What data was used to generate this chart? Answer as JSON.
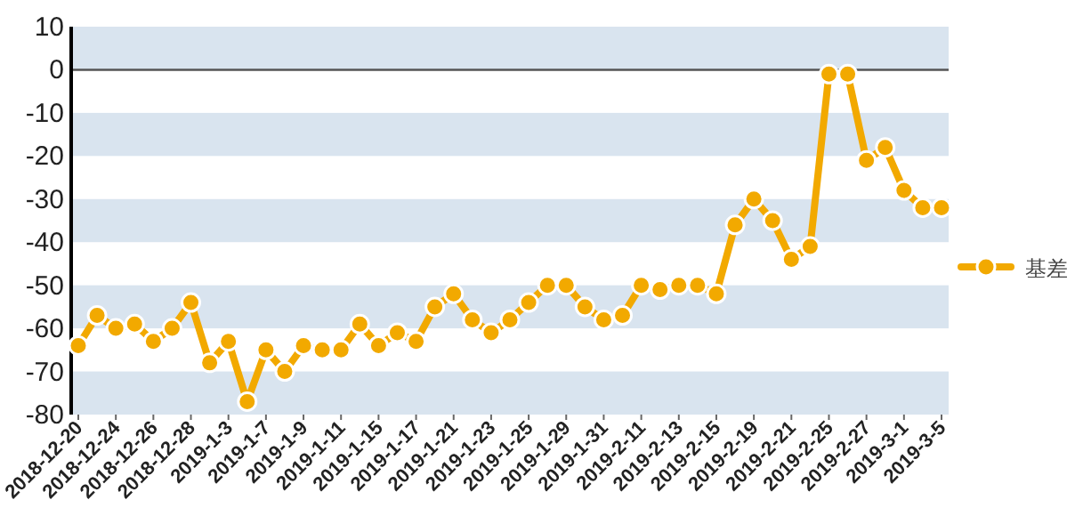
{
  "chart_data": {
    "type": "line",
    "categories": [
      "2018-12-20",
      null,
      "2018-12-24",
      null,
      "2018-12-26",
      null,
      "2018-12-28",
      null,
      "2019-1-3",
      null,
      "2019-1-7",
      null,
      "2019-1-9",
      null,
      "2019-1-11",
      null,
      "2019-1-15",
      null,
      "2019-1-17",
      null,
      "2019-1-21",
      null,
      "2019-1-23",
      null,
      "2019-1-25",
      null,
      "2019-1-29",
      null,
      "2019-1-31",
      null,
      "2019-2-11",
      null,
      "2019-2-13",
      null,
      "2019-2-15",
      null,
      "2019-2-19",
      null,
      "2019-2-21",
      null,
      "2019-2-25",
      null,
      "2019-2-27",
      null,
      "2019-3-1",
      null,
      "2019-3-5"
    ],
    "series": [
      {
        "name": "基差",
        "color": "#f2a900",
        "values": [
          -64,
          -57,
          -60,
          -59,
          -63,
          -60,
          -54,
          -68,
          -63,
          -77,
          -65,
          -70,
          -64,
          -65,
          -65,
          -59,
          -64,
          -61,
          -63,
          -55,
          -52,
          -58,
          -61,
          -58,
          -54,
          -50,
          -50,
          -55,
          -58,
          -57,
          -50,
          -51,
          -50,
          -50,
          -52,
          -36,
          -30,
          -35,
          -44,
          -41,
          -1,
          -1,
          -21,
          -18,
          -28,
          -32,
          -32
        ]
      }
    ],
    "ylim": [
      -80,
      10
    ],
    "yticks": [
      -80,
      -70,
      -60,
      -50,
      -40,
      -30,
      -20,
      -10,
      0,
      10
    ],
    "grid": "y",
    "legend": "right",
    "marker": "circle",
    "line_style": "solid"
  }
}
